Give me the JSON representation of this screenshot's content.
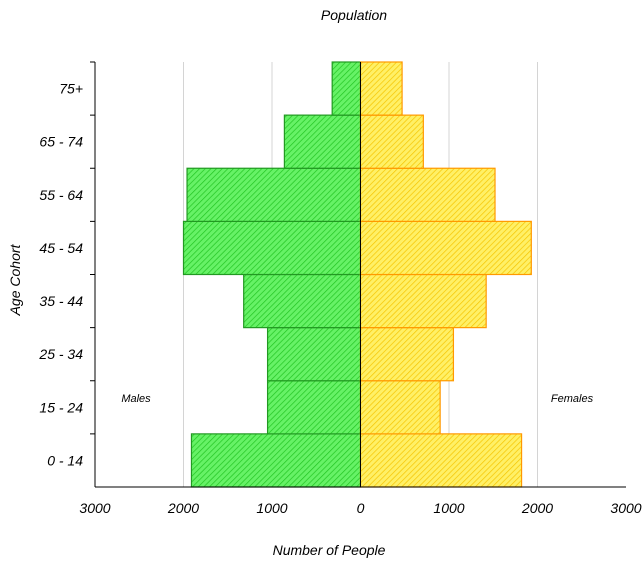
{
  "chart_data": {
    "type": "bar",
    "subtype": "population-pyramid",
    "title": "Population",
    "xlabel": "Number of People",
    "ylabel": "Age Cohort",
    "categories": [
      "0 - 14",
      "15 - 24",
      "25 - 34",
      "35 - 44",
      "45 - 54",
      "55 - 64",
      "65 - 74",
      "75+"
    ],
    "series": [
      {
        "name": "Males",
        "color": "#44ee44",
        "stroke": "#229922",
        "side": "left",
        "values": [
          1910,
          1050,
          1050,
          1320,
          2000,
          1960,
          860,
          320
        ]
      },
      {
        "name": "Females",
        "color": "#ffee44",
        "stroke": "#ff9900",
        "side": "right",
        "values": [
          1820,
          900,
          1050,
          1420,
          1930,
          1520,
          710,
          470
        ]
      }
    ],
    "xlim": [
      -3000,
      3000
    ],
    "xticks": [
      -3000,
      -2000,
      -1000,
      0,
      1000,
      2000,
      3000
    ],
    "xtick_labels": [
      "3000",
      "2000",
      "1000",
      "0",
      "1000",
      "2000",
      "3000"
    ],
    "grid": "vertical",
    "legend": "inline labels"
  }
}
